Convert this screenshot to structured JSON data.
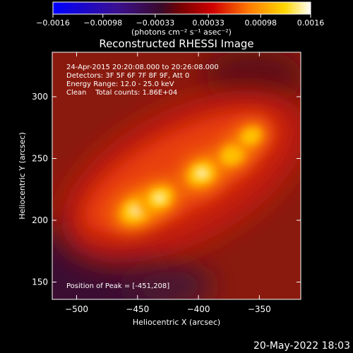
{
  "colorbar": {
    "tick_labels": [
      "-0.0016",
      "-0.00098",
      "-0.00033",
      "0.00033",
      "0.00098",
      "0.0016"
    ],
    "units": "(photons cm⁻² s⁻¹ asec⁻²)",
    "range": [
      -0.0016,
      0.0016
    ]
  },
  "chart_data": {
    "type": "heatmap",
    "title": "Reconstructed RHESSI Image",
    "xlabel": "Heliocentric X (arcsec)",
    "ylabel": "Heliocentric Y (arcsec)",
    "xlim": [
      -520,
      -316
    ],
    "ylim": [
      136,
      336
    ],
    "xticks": [
      -500,
      -450,
      -400,
      -350
    ],
    "yticks": [
      150,
      200,
      250,
      300
    ],
    "xtick_labels": [
      "−500",
      "−450",
      "−400",
      "−350"
    ],
    "ytick_labels": [
      "150",
      "200",
      "250",
      "300"
    ],
    "sources": [
      {
        "x": -451,
        "y": 208,
        "value": 0.0016
      },
      {
        "x": -432,
        "y": 218,
        "value": 0.0014
      },
      {
        "x": -397,
        "y": 238,
        "value": 0.0015
      },
      {
        "x": -372,
        "y": 253,
        "value": 0.0012
      },
      {
        "x": -357,
        "y": 268,
        "value": 0.001
      }
    ],
    "annotations": [
      "24-Apr-2015 20:20:08.000 to 20:26:08.000",
      "Detectors: 3F 5F 6F 7F 8F 9F, Att 0",
      "Energy Range: 12.0 - 25.0 keV",
      "Clean    Total counts: 1.86E+04"
    ],
    "peak_label": "Position of Peak = [-451,208]"
  },
  "footer": {
    "date": "20-May-2022 18:03"
  }
}
